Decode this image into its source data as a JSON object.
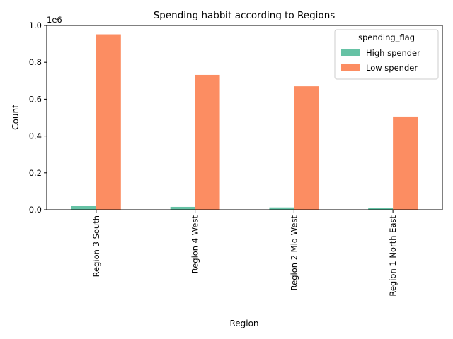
{
  "chart_data": {
    "type": "bar",
    "title": "Spending habbit according to Regions",
    "xlabel": "Region",
    "ylabel": "Count",
    "y_scale_label": "1e6",
    "categories": [
      "Region 3 South",
      "Region 4 West",
      "Region 2 Mid West",
      "Region 1 North East"
    ],
    "series": [
      {
        "name": "High spender",
        "values": [
          19500,
          15500,
          12500,
          9000
        ],
        "color": "#66c2a5"
      },
      {
        "name": "Low spender",
        "values": [
          952000,
          732000,
          670000,
          506000
        ],
        "color": "#fc8d62"
      }
    ],
    "ylim": [
      0,
      1000000
    ],
    "y_ticks": [
      0,
      200000,
      400000,
      600000,
      800000,
      1000000
    ],
    "y_tick_labels": [
      "0.0",
      "0.2",
      "0.4",
      "0.6",
      "0.8",
      "1.0"
    ],
    "grid": false,
    "legend": {
      "title": "spending_flag",
      "placement": "top-right"
    }
  }
}
